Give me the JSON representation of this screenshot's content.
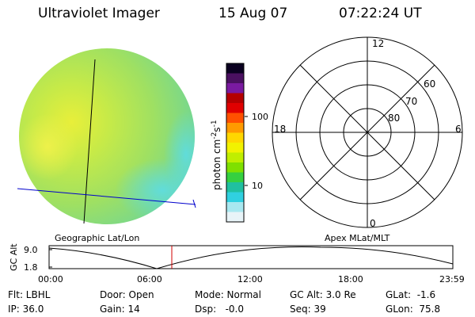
{
  "header": {
    "instrument": "Ultraviolet Imager",
    "date": "15 Aug 07",
    "time": "07:22:24 UT"
  },
  "colorbar": {
    "unit_label": "photon cm",
    "unit_sup1": "-2",
    "unit_s": "s",
    "unit_sup2": "-1",
    "tick_100": "100",
    "tick_10": "10",
    "colors": [
      "#0a0020",
      "#4a1060",
      "#7a1aa0",
      "#b40000",
      "#e00000",
      "#ff5000",
      "#ff9a00",
      "#ffd700",
      "#f2f200",
      "#c0ee00",
      "#7fe000",
      "#35d040",
      "#20c0a0",
      "#30d0e0",
      "#a8e8f0",
      "#e8f4f8"
    ]
  },
  "geo_panel": {
    "label": "Geographic Lat/Lon"
  },
  "polar": {
    "label": "Apex MLat/MLT",
    "mlt_top": "12",
    "mlt_left": "18",
    "mlt_right": "6",
    "mlt_bottom": "0",
    "lat_60": "60",
    "lat_70": "70",
    "lat_80": "80"
  },
  "altitude_plot": {
    "ylabel": "GC Alt",
    "y_top": "9.0",
    "y_bottom": "1.8",
    "x_ticks": [
      "00:00",
      "06:00",
      "12:00",
      "18:00",
      "23:59"
    ],
    "marker_color": "#d00000"
  },
  "footer": {
    "flt": "Flt: LBHL",
    "ip": "IP: 36.0",
    "door": "Door: Open",
    "gain": "Gain: 14",
    "mode": "Mode: Normal",
    "dsp": "Dsp:   -0.0",
    "gcalt": "GC Alt: 3.0 Re",
    "seq": "Seq: 39",
    "glat": "GLat:  -1.6",
    "glon": "GLon:  75.8"
  }
}
